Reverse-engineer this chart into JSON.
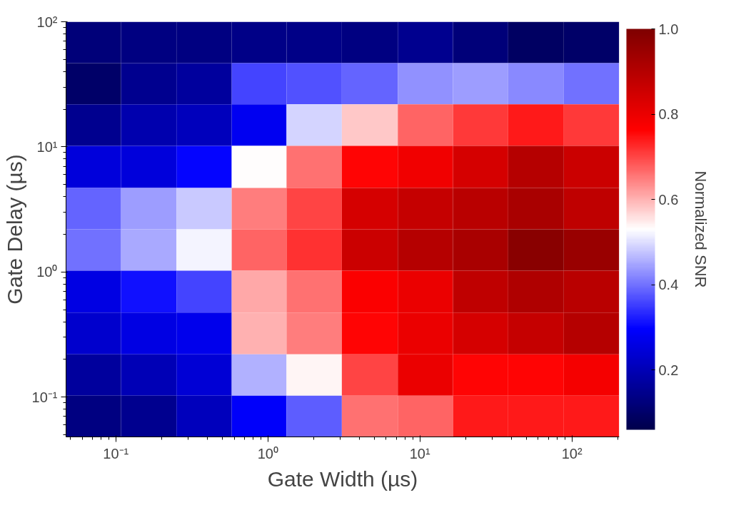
{
  "chart_data": {
    "type": "heatmap",
    "xlabel": "Gate Width (µs)",
    "ylabel": "Gate Delay (µs)",
    "clabel": "Normalized SNR",
    "log": "xy",
    "xlim": [
      0.047,
      205
    ],
    "ylim": [
      0.048,
      100
    ],
    "xticks": [
      {
        "value": 0.1,
        "label": "10⁻¹"
      },
      {
        "value": 1,
        "label": "10⁰"
      },
      {
        "value": 10,
        "label": "10¹"
      },
      {
        "value": 100,
        "label": "10²"
      }
    ],
    "yticks": [
      {
        "value": 0.1,
        "label": "10⁻¹"
      },
      {
        "value": 1,
        "label": "10⁰"
      },
      {
        "value": 10,
        "label": "10¹"
      },
      {
        "value": 100,
        "label": "10²"
      }
    ],
    "x": [
      0.071,
      0.165,
      0.38,
      0.88,
      2.0,
      4.7,
      10.9,
      25,
      58,
      135
    ],
    "y": [
      68,
      32,
      15,
      6.9,
      3.2,
      1.5,
      0.7,
      0.32,
      0.15,
      0.07
    ],
    "clim": [
      0.06,
      1.0
    ],
    "cticks": [
      0.2,
      0.4,
      0.6,
      0.8,
      {
        "value": 1,
        "label": "1.0"
      }
    ],
    "cells": [
      [
        0.12,
        0.13,
        0.13,
        0.14,
        0.14,
        0.13,
        0.15,
        0.12,
        0.09,
        0.1
      ],
      [
        0.1,
        0.15,
        0.17,
        0.36,
        0.37,
        0.39,
        0.43,
        0.44,
        0.42,
        0.4
      ],
      [
        0.15,
        0.19,
        0.21,
        0.28,
        0.49,
        0.58,
        0.67,
        0.71,
        0.74,
        0.71
      ],
      [
        0.25,
        0.25,
        0.3,
        0.53,
        0.66,
        0.76,
        0.79,
        0.84,
        0.9,
        0.86
      ],
      [
        0.39,
        0.44,
        0.48,
        0.65,
        0.7,
        0.84,
        0.87,
        0.89,
        0.92,
        0.88
      ],
      [
        0.4,
        0.45,
        0.52,
        0.67,
        0.72,
        0.86,
        0.9,
        0.92,
        0.98,
        0.95
      ],
      [
        0.26,
        0.31,
        0.36,
        0.61,
        0.66,
        0.77,
        0.8,
        0.88,
        0.91,
        0.89
      ],
      [
        0.23,
        0.26,
        0.27,
        0.6,
        0.65,
        0.76,
        0.8,
        0.84,
        0.87,
        0.9
      ],
      [
        0.17,
        0.2,
        0.24,
        0.46,
        0.54,
        0.7,
        0.8,
        0.76,
        0.76,
        0.78
      ],
      [
        0.13,
        0.15,
        0.21,
        0.29,
        0.38,
        0.66,
        0.67,
        0.74,
        0.74,
        0.74
      ]
    ]
  }
}
